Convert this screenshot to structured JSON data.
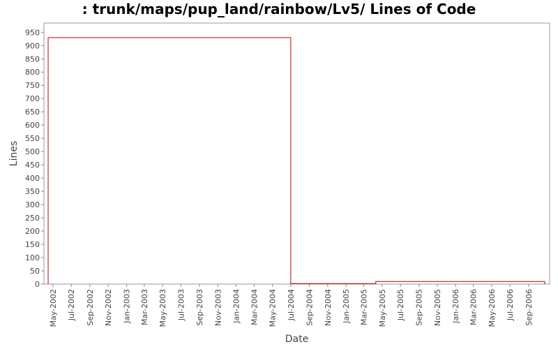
{
  "chart_data": {
    "type": "line",
    "title": ": trunk/maps/pup_land/rainbow/Lv5/ Lines of Code",
    "xlabel": "Date",
    "ylabel": "Lines",
    "ylim": [
      0,
      985
    ],
    "xlim": [
      "2002-04-01",
      "2006-11-10"
    ],
    "yticks": [
      0,
      50,
      100,
      150,
      200,
      250,
      300,
      350,
      400,
      450,
      500,
      550,
      600,
      650,
      700,
      750,
      800,
      850,
      900,
      950
    ],
    "xticks": [
      "May-2002",
      "Jul-2002",
      "Sep-2002",
      "Nov-2002",
      "Jan-2003",
      "Mar-2003",
      "May-2003",
      "Jul-2003",
      "Sep-2003",
      "Nov-2003",
      "Jan-2004",
      "Mar-2004",
      "May-2004",
      "Jul-2004",
      "Sep-2004",
      "Nov-2004",
      "Jan-2005",
      "Mar-2005",
      "May-2005",
      "Jul-2005",
      "Sep-2005",
      "Nov-2005",
      "Jan-2006",
      "Mar-2006",
      "May-2006",
      "Jul-2006",
      "Sep-2006"
    ],
    "series": [
      {
        "color": "#c00000",
        "step": true,
        "x": [
          "2002-04-15",
          "2004-07-01",
          "2005-04-10",
          "2006-10-25"
        ],
        "y": [
          930,
          2,
          10,
          10
        ]
      }
    ],
    "grid": false,
    "legend": "none"
  }
}
